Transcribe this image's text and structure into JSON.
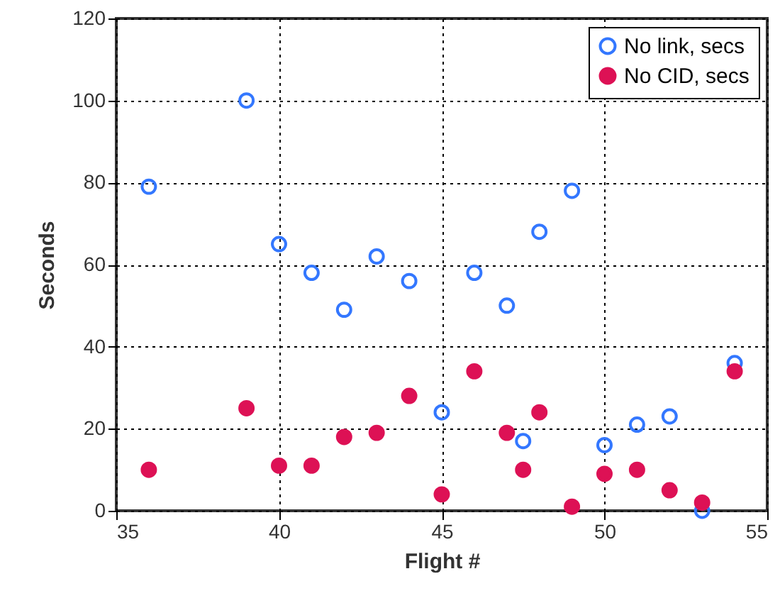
{
  "chart_data": {
    "type": "scatter",
    "xlabel": "Flight #",
    "ylabel": "Seconds",
    "xlim": [
      35,
      55
    ],
    "ylim": [
      0,
      120
    ],
    "xticks": [
      35,
      40,
      45,
      50,
      55
    ],
    "yticks": [
      0,
      20,
      40,
      60,
      80,
      100,
      120
    ],
    "grid": true,
    "legend": "top right",
    "marker": "circle",
    "x": [
      36,
      39,
      40,
      41,
      42,
      43,
      44,
      45,
      46,
      47,
      47.5,
      48,
      49,
      50,
      51,
      52,
      53,
      54
    ],
    "series": [
      {
        "name": "No link, secs",
        "color": "#3377ff",
        "values": [
          79,
          100,
          65,
          58,
          49,
          62,
          56,
          24,
          58,
          50,
          17,
          68,
          78,
          16,
          21,
          23,
          0,
          36
        ]
      },
      {
        "name": "No CID, secs",
        "color": "#dd1155",
        "values": [
          10,
          25,
          11,
          11,
          18,
          19,
          28,
          4,
          34,
          19,
          10,
          24,
          1,
          9,
          10,
          5,
          2,
          34
        ]
      }
    ]
  }
}
